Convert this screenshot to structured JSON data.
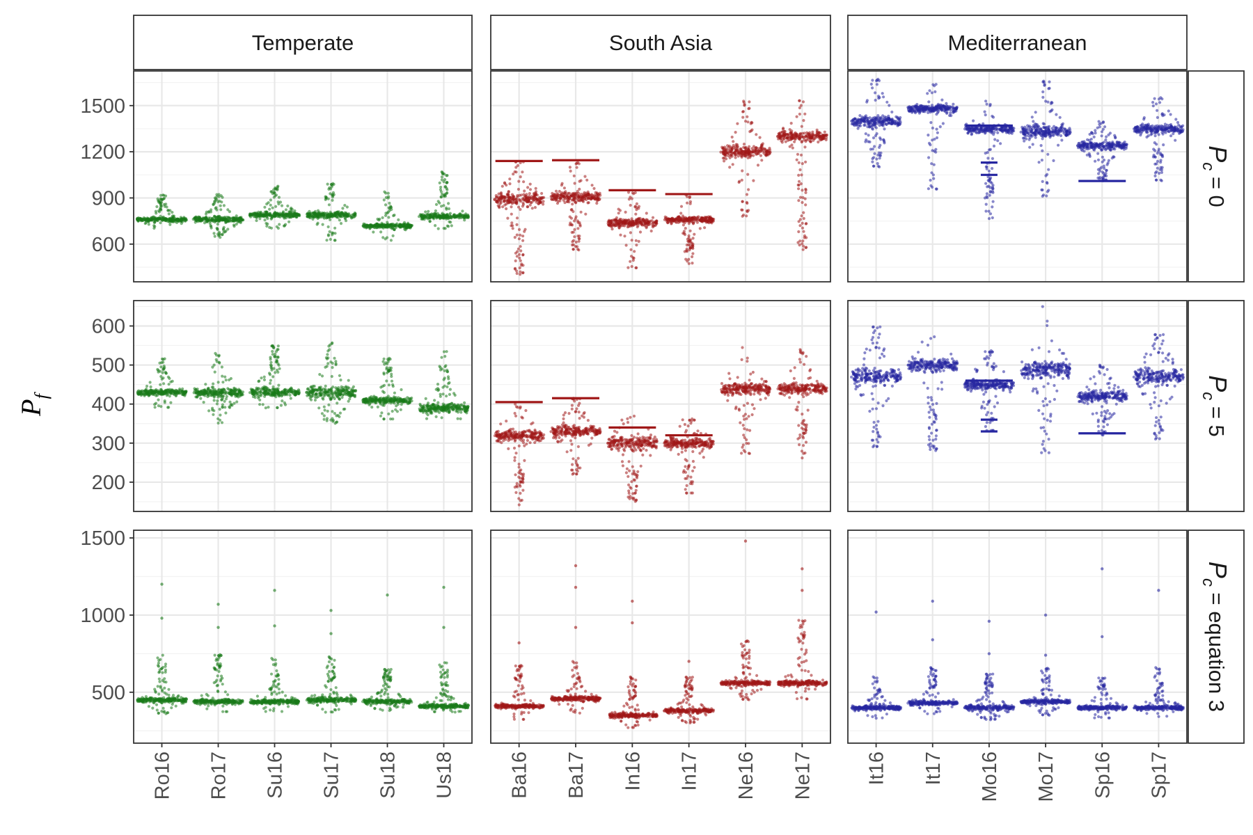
{
  "colors": {
    "Temperate": "#1a7a1a",
    "South Asia": "#a01818",
    "Mediterranean": "#2626a0",
    "grid_major": "#e8e8e8",
    "grid_minor": "#f3f3f3",
    "panel_border": "#333333",
    "strip_bg": "#ffffff"
  },
  "chart_data": {
    "type": "beeswarm",
    "ylabel": "P_f",
    "ylabel_main": "P",
    "ylabel_sub": "f",
    "column_strips": [
      "Temperate",
      "South Asia",
      "Mediterranean"
    ],
    "row_strips": [
      {
        "main": "P",
        "sub": "c",
        "rest": " = 0"
      },
      {
        "main": "P",
        "sub": "c",
        "rest": " = 5"
      },
      {
        "main": "P",
        "sub": "c",
        "rest": " = equation 3"
      }
    ],
    "categories": [
      [
        "Ro16",
        "Ro17",
        "Su16",
        "Su17",
        "Su18",
        "Us18"
      ],
      [
        "Ba16",
        "Ba17",
        "In16",
        "In17",
        "Ne16",
        "Ne17"
      ],
      [
        "It16",
        "It17",
        "Mo16",
        "Mo17",
        "Sp16",
        "Sp17"
      ]
    ],
    "rows": [
      {
        "ylim": [
          355,
          1725
        ],
        "yticks": [
          600,
          900,
          1200,
          1500
        ],
        "minor_ticks": [
          450,
          750,
          1050,
          1350,
          1650
        ],
        "groups": [
          [
            {
              "center": 760,
              "min": 700,
              "max": 920,
              "spread": 55
            },
            {
              "center": 760,
              "min": 640,
              "max": 930,
              "spread": 65
            },
            {
              "center": 790,
              "min": 700,
              "max": 980,
              "spread": 70
            },
            {
              "center": 790,
              "min": 620,
              "max": 1000,
              "spread": 80
            },
            {
              "center": 720,
              "min": 620,
              "max": 940,
              "spread": 55
            },
            {
              "center": 780,
              "min": 700,
              "max": 1070,
              "spread": 65
            }
          ],
          [
            {
              "center": 890,
              "min": 400,
              "max": 1140,
              "spread": 150,
              "hline": 1140
            },
            {
              "center": 910,
              "min": 560,
              "max": 1140,
              "spread": 130,
              "hline": 1145
            },
            {
              "center": 740,
              "min": 440,
              "max": 950,
              "spread": 110,
              "hline": 950
            },
            {
              "center": 760,
              "min": 470,
              "max": 920,
              "spread": 80,
              "hline": 925
            },
            {
              "center": 1200,
              "min": 780,
              "max": 1530,
              "spread": 160
            },
            {
              "center": 1300,
              "min": 560,
              "max": 1540,
              "spread": 110
            }
          ],
          [
            {
              "center": 1400,
              "min": 1100,
              "max": 1680,
              "spread": 140
            },
            {
              "center": 1480,
              "min": 950,
              "max": 1660,
              "spread": 100
            },
            {
              "center": 1350,
              "min": 760,
              "max": 1530,
              "spread": 110,
              "hline": 1370,
              "hline2": 1050,
              "hline3": 1130
            },
            {
              "center": 1330,
              "min": 910,
              "max": 1660,
              "spread": 160
            },
            {
              "center": 1240,
              "min": 1010,
              "max": 1400,
              "spread": 90,
              "hline": 1010
            },
            {
              "center": 1350,
              "min": 1010,
              "max": 1560,
              "spread": 120
            }
          ]
        ]
      },
      {
        "ylim": [
          125,
          665
        ],
        "yticks": [
          200,
          300,
          400,
          500,
          600
        ],
        "minor_ticks": [
          150,
          250,
          350,
          450,
          550,
          650
        ],
        "groups": [
          [
            {
              "center": 430,
              "min": 390,
              "max": 520,
              "spread": 30
            },
            {
              "center": 430,
              "min": 350,
              "max": 530,
              "spread": 45
            },
            {
              "center": 430,
              "min": 390,
              "max": 550,
              "spread": 45
            },
            {
              "center": 430,
              "min": 350,
              "max": 560,
              "spread": 55
            },
            {
              "center": 410,
              "min": 360,
              "max": 520,
              "spread": 35
            },
            {
              "center": 390,
              "min": 360,
              "max": 540,
              "spread": 45
            }
          ],
          [
            {
              "center": 320,
              "min": 140,
              "max": 400,
              "spread": 55,
              "hline": 405
            },
            {
              "center": 330,
              "min": 220,
              "max": 415,
              "spread": 50,
              "hline": 415
            },
            {
              "center": 300,
              "min": 150,
              "max": 375,
              "spread": 60,
              "hline": 340
            },
            {
              "center": 300,
              "min": 170,
              "max": 365,
              "spread": 50,
              "hline": 320
            },
            {
              "center": 440,
              "min": 270,
              "max": 545,
              "spread": 60
            },
            {
              "center": 440,
              "min": 260,
              "max": 540,
              "spread": 50
            }
          ],
          [
            {
              "center": 470,
              "min": 290,
              "max": 600,
              "spread": 70
            },
            {
              "center": 500,
              "min": 280,
              "max": 580,
              "spread": 60
            },
            {
              "center": 450,
              "min": 330,
              "max": 540,
              "spread": 50,
              "hline": 460,
              "hline2": 330,
              "hline3": 360
            },
            {
              "center": 490,
              "min": 270,
              "max": 650,
              "spread": 85
            },
            {
              "center": 420,
              "min": 320,
              "max": 500,
              "spread": 50,
              "hline": 325
            },
            {
              "center": 470,
              "min": 310,
              "max": 580,
              "spread": 70
            }
          ]
        ]
      },
      {
        "ylim": [
          170,
          1550
        ],
        "yticks": [
          500,
          1000,
          1500
        ],
        "minor_ticks": [
          250,
          750,
          1250
        ],
        "groups": [
          [
            {
              "center": 450,
              "min": 360,
              "max": 750,
              "spread": 60,
              "outliers": [
                980,
                1200
              ]
            },
            {
              "center": 440,
              "min": 370,
              "max": 750,
              "spread": 60,
              "outliers": [
                920,
                1070
              ]
            },
            {
              "center": 440,
              "min": 370,
              "max": 720,
              "spread": 60,
              "outliers": [
                930,
                1160
              ]
            },
            {
              "center": 450,
              "min": 370,
              "max": 730,
              "spread": 65,
              "outliers": [
                880,
                1030
              ]
            },
            {
              "center": 440,
              "min": 380,
              "max": 650,
              "spread": 55,
              "outliers": [
                1130
              ]
            },
            {
              "center": 410,
              "min": 370,
              "max": 700,
              "spread": 55,
              "outliers": [
                920,
                1180
              ]
            }
          ],
          [
            {
              "center": 410,
              "min": 320,
              "max": 680,
              "spread": 50,
              "outliers": [
                820
              ]
            },
            {
              "center": 460,
              "min": 360,
              "max": 700,
              "spread": 60,
              "outliers": [
                920,
                1180,
                1320
              ]
            },
            {
              "center": 350,
              "min": 270,
              "max": 600,
              "spread": 55,
              "outliers": [
                950,
                1090
              ]
            },
            {
              "center": 380,
              "min": 300,
              "max": 600,
              "spread": 50,
              "outliers": [
                700
              ]
            },
            {
              "center": 560,
              "min": 450,
              "max": 840,
              "spread": 60,
              "outliers": [
                1480
              ]
            },
            {
              "center": 560,
              "min": 450,
              "max": 980,
              "spread": 65,
              "outliers": [
                1300,
                1160
              ]
            }
          ],
          [
            {
              "center": 400,
              "min": 330,
              "max": 600,
              "spread": 55,
              "outliers": [
                1020
              ]
            },
            {
              "center": 430,
              "min": 360,
              "max": 660,
              "spread": 55,
              "outliers": [
                840,
                1090
              ]
            },
            {
              "center": 400,
              "min": 320,
              "max": 620,
              "spread": 55,
              "outliers": [
                750,
                960
              ]
            },
            {
              "center": 440,
              "min": 350,
              "max": 660,
              "spread": 55,
              "outliers": [
                740,
                1000
              ]
            },
            {
              "center": 400,
              "min": 330,
              "max": 600,
              "spread": 55,
              "outliers": [
                860,
                1300
              ]
            },
            {
              "center": 400,
              "min": 340,
              "max": 660,
              "spread": 55,
              "outliers": [
                1160
              ]
            }
          ]
        ]
      }
    ]
  }
}
